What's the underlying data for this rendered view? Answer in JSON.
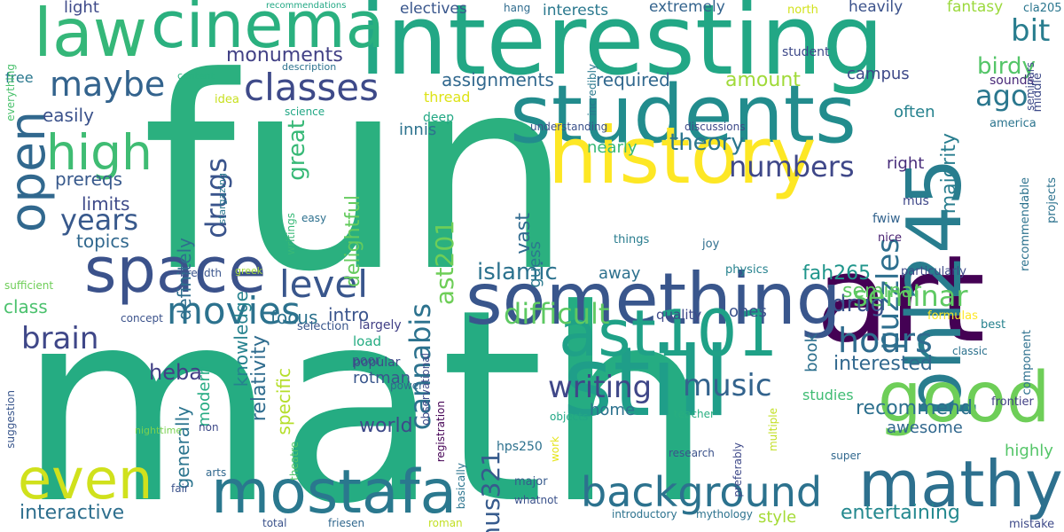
{
  "words": [
    {
      "text": "fun",
      "color": "#2bb07f"
    },
    {
      "text": "math",
      "color": "#25ac82"
    },
    {
      "text": "interesting",
      "color": "#22a785"
    },
    {
      "text": "students",
      "color": "#228c8d"
    },
    {
      "text": "history",
      "color": "#fde725"
    },
    {
      "text": "art",
      "color": "#440154"
    },
    {
      "text": "still",
      "color": "#1f9e89"
    },
    {
      "text": "something",
      "color": "#39568c"
    },
    {
      "text": "cinema",
      "color": "#2ab07f"
    },
    {
      "text": "law",
      "color": "#35b779"
    },
    {
      "text": "space",
      "color": "#3b528b"
    },
    {
      "text": "phl245",
      "color": "#287d8e"
    },
    {
      "text": "good",
      "color": "#6ece58"
    },
    {
      "text": "ast101",
      "color": "#1fa187"
    },
    {
      "text": "mathy",
      "color": "#2d708e"
    },
    {
      "text": "even",
      "color": "#d0e11c"
    },
    {
      "text": "mostafa",
      "color": "#2a788e"
    },
    {
      "text": "open",
      "color": "#31688e"
    },
    {
      "text": "high",
      "color": "#3fbc73"
    },
    {
      "text": "background",
      "color": "#2c728e"
    },
    {
      "text": "classes",
      "color": "#3e4a89"
    },
    {
      "text": "movies",
      "color": "#2c728e"
    },
    {
      "text": "level",
      "color": "#39568c"
    },
    {
      "text": "maybe",
      "color": "#33638d"
    },
    {
      "text": "hours",
      "color": "#2f6c8e"
    },
    {
      "text": "brain",
      "color": "#3f4788"
    },
    {
      "text": "writing",
      "color": "#3f4788"
    },
    {
      "text": "music",
      "color": "#33638d"
    },
    {
      "text": "puzzles",
      "color": "#2e6f8e"
    },
    {
      "text": "difficult",
      "color": "#5ec962"
    },
    {
      "text": "years",
      "color": "#38598c"
    },
    {
      "text": "drugs",
      "color": "#3a548c"
    },
    {
      "text": "numbers",
      "color": "#3f4889"
    },
    {
      "text": "cannabis",
      "color": "#2c728e"
    },
    {
      "text": "seminar",
      "color": "#5ec962"
    },
    {
      "text": "theory",
      "color": "#2a768e"
    },
    {
      "text": "mus321",
      "color": "#375b8d"
    },
    {
      "text": "ast201",
      "color": "#6ece58"
    },
    {
      "text": "bit",
      "color": "#287d8e"
    },
    {
      "text": "ago",
      "color": "#2a778e"
    },
    {
      "text": "birdy",
      "color": "#54c568"
    },
    {
      "text": "islamic",
      "color": "#2c728e"
    },
    {
      "text": "drug",
      "color": "#3a548c"
    },
    {
      "text": "great",
      "color": "#38b977"
    },
    {
      "text": "delightful",
      "color": "#65cb5e"
    },
    {
      "text": "heba",
      "color": "#424086"
    },
    {
      "text": "relativity",
      "color": "#2f6c8e"
    },
    {
      "text": "interested",
      "color": "#31688e"
    },
    {
      "text": "recommend",
      "color": "#2d708e"
    },
    {
      "text": "entertaining",
      "color": "#23888e"
    },
    {
      "text": "interactive",
      "color": "#2e6f8e"
    },
    {
      "text": "world",
      "color": "#3e4a89"
    },
    {
      "text": "monuments",
      "color": "#424186"
    },
    {
      "text": "amount",
      "color": "#a0da39"
    },
    {
      "text": "seminar",
      "color": "#5ec962"
    },
    {
      "text": "majority",
      "color": "#287d8e"
    },
    {
      "text": "fah265",
      "color": "#1f958b"
    },
    {
      "text": "vast",
      "color": "#306a8e"
    },
    {
      "text": "easily",
      "color": "#3b528b"
    },
    {
      "text": "prereqs",
      "color": "#38598c"
    },
    {
      "text": "topics",
      "color": "#31688e"
    },
    {
      "text": "limits",
      "color": "#3e4a89"
    },
    {
      "text": "class",
      "color": "#4ac16d"
    },
    {
      "text": "intro",
      "color": "#3a548c"
    },
    {
      "text": "focus",
      "color": "#2c728e"
    },
    {
      "text": "generally",
      "color": "#2b748e"
    },
    {
      "text": "specific",
      "color": "#b5de2b"
    },
    {
      "text": "knowledge",
      "color": "#26828e"
    },
    {
      "text": "definitely",
      "color": "#2e6e8e"
    },
    {
      "text": "modern",
      "color": "#25ab82"
    },
    {
      "text": "assignments",
      "color": "#31688e"
    },
    {
      "text": "required",
      "color": "#31688e"
    },
    {
      "text": "campus",
      "color": "#3e4a89"
    },
    {
      "text": "often",
      "color": "#26828e"
    },
    {
      "text": "right",
      "color": "#472c7a"
    },
    {
      "text": "nearly",
      "color": "#37b878"
    },
    {
      "text": "away",
      "color": "#2d718e"
    },
    {
      "text": "innis",
      "color": "#2c728e"
    },
    {
      "text": "guess",
      "color": "#2a788e"
    },
    {
      "text": "ones",
      "color": "#3b528b"
    },
    {
      "text": "book",
      "color": "#2d708e"
    },
    {
      "text": "rotman",
      "color": "#39568c"
    },
    {
      "text": "home",
      "color": "#2c728e"
    },
    {
      "text": "studies",
      "color": "#3fbc73"
    },
    {
      "text": "awesome",
      "color": "#31688e"
    },
    {
      "text": "highly",
      "color": "#54c568"
    },
    {
      "text": "style",
      "color": "#a5db36"
    },
    {
      "text": "electives",
      "color": "#39568c"
    },
    {
      "text": "interests",
      "color": "#2a788e"
    },
    {
      "text": "extremely",
      "color": "#33638d"
    },
    {
      "text": "heavily",
      "color": "#3b528b"
    },
    {
      "text": "fantasy",
      "color": "#9bd93c"
    },
    {
      "text": "light",
      "color": "#3e4a89"
    },
    {
      "text": "free",
      "color": "#2a788e"
    },
    {
      "text": "thread",
      "color": "#dde318"
    },
    {
      "text": "deep",
      "color": "#22a884"
    },
    {
      "text": "sounds",
      "color": "#482878"
    },
    {
      "text": "student",
      "color": "#3e4989"
    },
    {
      "text": "quality",
      "color": "#3e4989"
    },
    {
      "text": "load",
      "color": "#25ac82"
    },
    {
      "text": "largely",
      "color": "#424086"
    },
    {
      "text": "poor",
      "color": "#3b528b"
    },
    {
      "text": "popular",
      "color": "#3e4989"
    },
    {
      "text": "hps250",
      "color": "#2d718e"
    },
    {
      "text": "fwiw",
      "color": "#33638d"
    },
    {
      "text": "mus",
      "color": "#3f4889"
    },
    {
      "text": "nice",
      "color": "#482071"
    },
    {
      "text": "joy",
      "color": "#2e6e8e"
    },
    {
      "text": "physics",
      "color": "#26828e"
    },
    {
      "text": "things",
      "color": "#287c8e"
    },
    {
      "text": "particularly",
      "color": "#3e4a89"
    },
    {
      "text": "formulas",
      "color": "#fde725"
    },
    {
      "text": "best",
      "color": "#26828e"
    },
    {
      "text": "classic",
      "color": "#2c728e"
    },
    {
      "text": "america",
      "color": "#2b748e"
    },
    {
      "text": "frontier",
      "color": "#424086"
    },
    {
      "text": "component",
      "color": "#2d708e"
    },
    {
      "text": "recommendable",
      "color": "#2c728e"
    },
    {
      "text": "middle",
      "color": "#3e4a89"
    },
    {
      "text": "projects",
      "color": "#2c728e"
    },
    {
      "text": "mistake",
      "color": "#3e4a89"
    },
    {
      "text": "cla205",
      "color": "#2a768e"
    },
    {
      "text": "north",
      "color": "#d2e21b"
    },
    {
      "text": "hang",
      "color": "#2f6c8e"
    },
    {
      "text": "recommendations",
      "color": "#22a884"
    },
    {
      "text": "content",
      "color": "#2ab07f"
    },
    {
      "text": "description",
      "color": "#2c728e"
    },
    {
      "text": "idea",
      "color": "#c8e020"
    },
    {
      "text": "science",
      "color": "#22a785"
    },
    {
      "text": "stargazing",
      "color": "#2a778e"
    },
    {
      "text": "writings",
      "color": "#38b977"
    },
    {
      "text": "easy",
      "color": "#2d708e"
    },
    {
      "text": "understanding",
      "color": "#3b528b"
    },
    {
      "text": "discussions",
      "color": "#3e4a89"
    },
    {
      "text": "incredibly",
      "color": "#2a788e"
    },
    {
      "text": "seminars",
      "color": "#3e4a89"
    },
    {
      "text": "everything",
      "color": "#4ac16d"
    },
    {
      "text": "sufficient",
      "color": "#6ece58"
    },
    {
      "text": "concept",
      "color": "#3b528b"
    },
    {
      "text": "breadth",
      "color": "#3a548c"
    },
    {
      "text": "greek",
      "color": "#a5db36"
    },
    {
      "text": "nighttime",
      "color": "#7ad151"
    },
    {
      "text": "non",
      "color": "#3e4a89"
    },
    {
      "text": "fair",
      "color": "#3b528b"
    },
    {
      "text": "total",
      "color": "#3b528b"
    },
    {
      "text": "friesen",
      "color": "#31688e"
    },
    {
      "text": "roman",
      "color": "#c2df23"
    },
    {
      "text": "suggestion",
      "color": "#39568c"
    },
    {
      "text": "theatre",
      "color": "#54c568"
    },
    {
      "text": "observational",
      "color": "#3e4a89"
    },
    {
      "text": "registration",
      "color": "#440154"
    },
    {
      "text": "basically",
      "color": "#2b748e"
    },
    {
      "text": "major",
      "color": "#375b8d"
    },
    {
      "text": "whatnot",
      "color": "#3b528b"
    },
    {
      "text": "introductory",
      "color": "#2c728e"
    },
    {
      "text": "mythology",
      "color": "#2c728e"
    },
    {
      "text": "power",
      "color": "#31688e"
    },
    {
      "text": "objects",
      "color": "#22a785"
    },
    {
      "text": "teacher",
      "color": "#28ae80"
    },
    {
      "text": "arts",
      "color": "#31688e"
    },
    {
      "text": "selection",
      "color": "#39568c"
    },
    {
      "text": "work",
      "color": "#e5e419"
    },
    {
      "text": "preferably",
      "color": "#3e4989"
    },
    {
      "text": "multiple",
      "color": "#c2df23"
    },
    {
      "text": "research",
      "color": "#3b528b"
    },
    {
      "text": "super",
      "color": "#31688e"
    },
    {
      "text": "didnt",
      "color": "#2c728e"
    }
  ]
}
